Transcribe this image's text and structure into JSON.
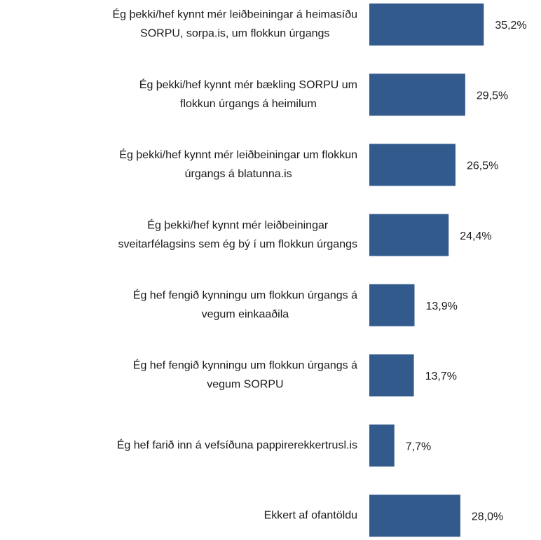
{
  "chart_data": {
    "type": "bar",
    "orientation": "horizontal",
    "color": "#335a8c",
    "categories": [
      [
        "Ég þekki/hef kynnt mér leiðbeiningar á heimasíðu",
        "SORPU, sorpa.is,  um flokkun úrgangs"
      ],
      [
        "Ég þekki/hef kynnt mér bækling SORPU um",
        "flokkun úrgangs á heimilum"
      ],
      [
        "Ég þekki/hef kynnt mér leiðbeiningar um flokkun",
        "úrgangs á blatunna.is"
      ],
      [
        "Ég þekki/hef kynnt mér leiðbeiningar",
        "sveitarfélagsins sem ég bý í um flokkun úrgangs"
      ],
      [
        "Ég hef fengið kynningu um flokkun úrgangs á",
        "vegum einkaaðila"
      ],
      [
        "Ég hef fengið kynningu um flokkun úrgangs á",
        "vegum SORPU"
      ],
      [
        "Ég hef farið inn á vefsíðuna pappirerekkertrusl.is"
      ],
      [
        "Ekkert af ofantöldu"
      ]
    ],
    "values": [
      35.2,
      29.5,
      26.5,
      24.4,
      13.9,
      13.7,
      7.7,
      28.0
    ],
    "value_labels": [
      "35,2%",
      "29,5%",
      "26,5%",
      "24,4%",
      "13,9%",
      "13,7%",
      "7,7%",
      "28,0%"
    ]
  }
}
